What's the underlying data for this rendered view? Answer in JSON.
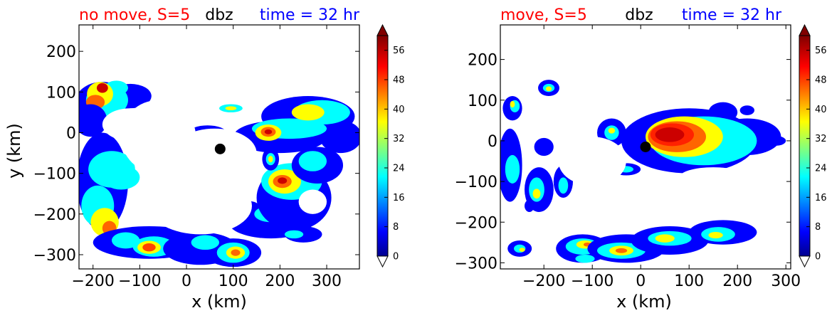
{
  "chart_data": [
    {
      "type": "contourf",
      "title_left": "no move, S=5",
      "title_center": "dbz",
      "title_right": "time = 32 hr",
      "xlabel": "x (km)",
      "ylabel": "y (km)",
      "xlim": [
        -230,
        370
      ],
      "ylim": [
        -335,
        265
      ],
      "xticks": [
        -200,
        -100,
        0,
        100,
        200,
        300
      ],
      "xtick_labels": [
        "−200",
        "−100",
        "0",
        "100",
        "200",
        "300"
      ],
      "yticks": [
        200,
        100,
        0,
        -100,
        -200,
        -300
      ],
      "ytick_labels": [
        "200",
        "100",
        "0",
        "−100",
        "−200",
        "−300"
      ],
      "center_marker": {
        "x": 72,
        "y": -40
      },
      "colorbar": {
        "min": 0,
        "max": 60,
        "step": 2,
        "ticks": [
          0,
          8,
          16,
          24,
          32,
          40,
          48,
          56
        ],
        "extend": "both"
      }
    },
    {
      "type": "contourf",
      "title_left": "move, S=5",
      "title_center": "dbz",
      "title_right": "time = 32 hr",
      "xlabel": "x (km)",
      "ylabel": "",
      "xlim": [
        -290,
        310
      ],
      "ylim": [
        -315,
        285
      ],
      "xticks": [
        -200,
        -100,
        0,
        100,
        200,
        300
      ],
      "xtick_labels": [
        "−200",
        "−100",
        "0",
        "100",
        "200",
        "300"
      ],
      "yticks": [
        200,
        100,
        0,
        -100,
        -200,
        -300
      ],
      "ytick_labels": [
        "200",
        "100",
        "0",
        "−100",
        "−200",
        "−300"
      ],
      "center_marker": {
        "x": 10,
        "y": -15
      },
      "colorbar": {
        "min": 0,
        "max": 60,
        "step": 2,
        "ticks": [
          0,
          8,
          16,
          24,
          32,
          40,
          48,
          56
        ],
        "extend": "both"
      }
    }
  ]
}
